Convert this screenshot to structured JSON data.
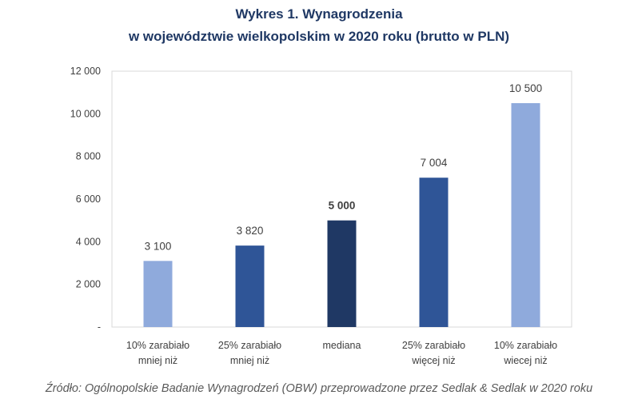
{
  "title_line1": "Wykres 1. Wynagrodzenia",
  "title_line2": "w województwie wielkopolskim  w 2020 roku (brutto w PLN)",
  "source": "Źródło: Ogólnopolskie Badanie Wynagrodzeń (OBW) przeprowadzone przez Sedlak & Sedlak w 2020 roku",
  "chart_data": {
    "type": "bar",
    "title": "Wykres 1. Wynagrodzenia w województwie wielkopolskim  w 2020 roku (brutto w PLN)",
    "categories": [
      [
        "10% zarabiało",
        "mniej niż"
      ],
      [
        "25% zarabiało",
        "mniej niż"
      ],
      [
        "mediana"
      ],
      [
        "25% zarabiało",
        "więcej niż"
      ],
      [
        "10% zarabiało",
        "wiecej niż"
      ]
    ],
    "values": [
      3100,
      3820,
      5000,
      7004,
      10500
    ],
    "data_labels": [
      "3 100",
      "3 820",
      "5 000",
      "7 004",
      "10 500"
    ],
    "bold_labels": [
      false,
      false,
      true,
      false,
      false
    ],
    "colors": [
      "#8faadc",
      "#2f5597",
      "#1f3864",
      "#2f5597",
      "#8faadc"
    ],
    "ylim": [
      0,
      12000
    ],
    "yticks": [
      0,
      2000,
      4000,
      6000,
      8000,
      10000,
      12000
    ],
    "ytick_labels": [
      "-",
      "2 000",
      "4 000",
      "6 000",
      "8 000",
      "10 000",
      "12 000"
    ],
    "grid": false,
    "xlabel": "",
    "ylabel": ""
  }
}
